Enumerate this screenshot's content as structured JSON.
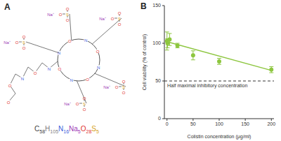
{
  "diagram": {
    "label": "A",
    "formula": [
      {
        "element": "C",
        "count": 58,
        "color": "#404040"
      },
      {
        "element": "H",
        "count": 105,
        "color": "#808080"
      },
      {
        "element": "N",
        "count": 16,
        "color": "#3b5bdb"
      },
      {
        "element": "Na",
        "count": 5,
        "color": "#9c36b5"
      },
      {
        "element": "O",
        "count": 28,
        "color": "#e03131"
      },
      {
        "element": "S",
        "count": 5,
        "color": "#d4a017"
      }
    ],
    "sulfonate_groups": [
      [
        "Na⁺",
        "O",
        "S",
        "O",
        "O"
      ],
      [
        "Na⁺",
        "O",
        "S",
        "O",
        "O"
      ],
      [
        "Na⁺",
        "O",
        "S",
        "O",
        "O"
      ],
      [
        "Na⁺",
        "O",
        "S",
        "O",
        "O"
      ],
      [
        "Na⁺",
        "O",
        "S",
        "O",
        "O"
      ]
    ],
    "ring_atoms": [
      "N",
      "O",
      "N",
      "O",
      "N",
      "O",
      "N",
      "O"
    ],
    "chain_atoms": [
      "N",
      "O",
      "N",
      "O",
      "O"
    ]
  },
  "chart_data": {
    "type": "scatter",
    "label": "B",
    "x_label": "Colistin concentration (μg/ml)",
    "y_label": "Cell viability (% of control)",
    "x": [
      0,
      1,
      5,
      20,
      50,
      100,
      200
    ],
    "values": [
      103,
      100,
      105,
      97,
      84,
      76,
      65
    ],
    "errors": [
      12,
      6,
      8,
      3,
      6,
      4,
      4
    ],
    "color": "#8dc63f",
    "marker": "circle",
    "fit": {
      "type": "line",
      "x": [
        0,
        200
      ],
      "values": [
        102,
        64
      ],
      "color": "#8dc63f",
      "line_style": "solid"
    },
    "reference_line": {
      "value": 50,
      "label": "Half maximal inhibitory concentration",
      "color": "#333333",
      "line_style": "dashed"
    },
    "xlim": [
      -5,
      205
    ],
    "xticks": [
      0,
      50,
      100,
      150,
      200
    ],
    "ylim": [
      0,
      150
    ],
    "yticks": [
      0,
      50,
      100,
      150
    ],
    "grid": false
  }
}
